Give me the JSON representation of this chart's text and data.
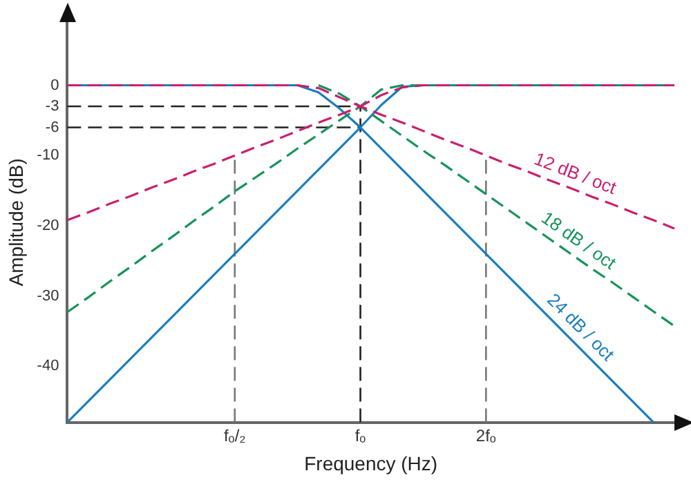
{
  "chart_data": {
    "type": "line",
    "xlabel": "Frequency (Hz)",
    "ylabel": "Amplitude (dB)",
    "ylim": [
      -48,
      9
    ],
    "categories": [
      null,
      null,
      null,
      null,
      null,
      null,
      null,
      null,
      "fₒ/₂",
      null,
      null,
      null,
      null,
      null,
      "fₒ",
      null,
      null,
      null,
      null,
      null,
      "2fₒ",
      null,
      null,
      null,
      null,
      null,
      null,
      null,
      null,
      null
    ],
    "yticks": [
      0,
      -3,
      -6,
      -10,
      -20,
      -30,
      -40
    ],
    "grid": false,
    "legend": false,
    "marker": "none",
    "ref_lines": [
      {
        "axis": "y",
        "value": -3,
        "color": "#222222",
        "line_style": "dashed"
      },
      {
        "axis": "y",
        "value": -6,
        "color": "#222222",
        "line_style": "dashed"
      },
      {
        "axis": "x",
        "value": "fₒ",
        "color": "#222222",
        "line_style": "dashed"
      },
      {
        "axis": "x",
        "value": "fₒ/₂",
        "color": "#777777",
        "line_style": "dashed"
      },
      {
        "axis": "x",
        "value": "2fₒ",
        "color": "#777777",
        "line_style": "dashed"
      }
    ],
    "series": [
      {
        "color": "#c91f6e",
        "line_style": "dashed",
        "values": [
          -19.2,
          -18.1,
          -16.9,
          -15.8,
          -14.6,
          -13.5,
          -12.3,
          -11.2,
          -10,
          -8.8,
          -7.7,
          -6.5,
          -5.3,
          -4.2,
          -3,
          -1.4,
          -0.3,
          0,
          0,
          0,
          0,
          0,
          0,
          0,
          0,
          0,
          0,
          0,
          0,
          0
        ]
      },
      {
        "name": "12 dB / oct",
        "color": "#c91f6e",
        "line_style": "dashed",
        "values": [
          0,
          0,
          0,
          0,
          0,
          0,
          0,
          0,
          0,
          0,
          0,
          0,
          -0.4,
          -1.7,
          -3,
          -4.2,
          -5.3,
          -6.5,
          -7.7,
          -8.8,
          -10,
          -11.2,
          -12.3,
          -13.5,
          -14.6,
          -15.8,
          -16.9,
          -18.1,
          -19.2,
          -20.4
        ]
      },
      {
        "color": "#16935a",
        "line_style": "dashed",
        "values": [
          -32.3,
          -30.2,
          -28.0,
          -25.9,
          -23.7,
          -21.6,
          -19.4,
          -17.3,
          -15.1,
          -13.1,
          -11.1,
          -9.0,
          -7.0,
          -5.0,
          -3,
          -0.6,
          0,
          0,
          0,
          0,
          0,
          0,
          0,
          0,
          0,
          0,
          0,
          0,
          0,
          0
        ]
      },
      {
        "name": "18 dB / oct",
        "color": "#16935a",
        "line_style": "dashed",
        "values": [
          null,
          null,
          null,
          null,
          null,
          null,
          null,
          null,
          null,
          null,
          null,
          null,
          0,
          -1.2,
          -3,
          -5.1,
          -7.2,
          -9.3,
          -11.3,
          -13.4,
          -15.5,
          -17.6,
          -19.7,
          -21.8,
          -23.9,
          -26.0,
          -28.0,
          -30.1,
          -32.2,
          -34.3
        ]
      },
      {
        "color": "#1b7dbf",
        "line_style": "solid",
        "values": [
          -48,
          -45,
          -42,
          -39,
          -36,
          -33,
          -30,
          -27,
          -24,
          -21,
          -18,
          -15,
          -12,
          -9,
          -6,
          -2.8,
          -0.2,
          0,
          0,
          0,
          0,
          0,
          0,
          0,
          0,
          0,
          0,
          0,
          0,
          0
        ]
      },
      {
        "name": "24 dB / oct",
        "color": "#1b7dbf",
        "line_style": "solid",
        "values": [
          0,
          0,
          0,
          0,
          0,
          0,
          0,
          0,
          0,
          0,
          0,
          0,
          -1.0,
          -3.3,
          -6,
          -9,
          -12,
          -15,
          -18,
          -21,
          -24,
          -27,
          -30,
          -33,
          -36,
          -39,
          -42,
          -45,
          -48,
          null
        ]
      }
    ]
  }
}
